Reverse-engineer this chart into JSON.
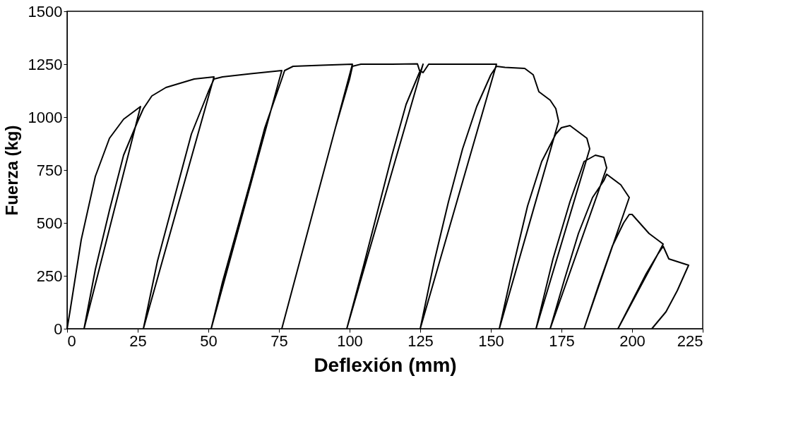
{
  "chart_data": {
    "type": "line",
    "xlabel": "Deflexión (mm)",
    "ylabel": "Fuerza (kg)",
    "xlim": [
      0,
      225
    ],
    "ylim": [
      0,
      1500
    ],
    "xticks": [
      0,
      25,
      50,
      75,
      100,
      125,
      150,
      175,
      200,
      225
    ],
    "yticks": [
      0,
      250,
      500,
      750,
      1000,
      1250,
      1500
    ],
    "grid": false,
    "marker": "none",
    "line_style": "solid",
    "series": [
      {
        "color": "#000000",
        "x": [
          0,
          1,
          5,
          10,
          15,
          20,
          24,
          26,
          6,
          10,
          15,
          20,
          25,
          27,
          30,
          35,
          40,
          45,
          52,
          27,
          32,
          38,
          44,
          50,
          52,
          55,
          65,
          76,
          51,
          55,
          60,
          65,
          70,
          76,
          77,
          80,
          90,
          101,
          76,
          80,
          85,
          90,
          95,
          100,
          101,
          104,
          115,
          124,
          125,
          126,
          99,
          105,
          110,
          115,
          120,
          125,
          126,
          128,
          140,
          152,
          125,
          130,
          135,
          140,
          145,
          150,
          152,
          155,
          162,
          165,
          167,
          171,
          173,
          174,
          153,
          158,
          163,
          168,
          173,
          175,
          178,
          184,
          185,
          166,
          172,
          178,
          183,
          187,
          190,
          191,
          171,
          176,
          181,
          186,
          190,
          191,
          196,
          199,
          183,
          188,
          193,
          197,
          199,
          200,
          206,
          211,
          195,
          200,
          205,
          209,
          211,
          213,
          220,
          216,
          212,
          207
        ],
        "values": [
          0,
          80,
          420,
          720,
          900,
          990,
          1030,
          1050,
          0,
          280,
          560,
          820,
          980,
          1040,
          1100,
          1140,
          1160,
          1180,
          1190,
          0,
          320,
          620,
          920,
          1120,
          1180,
          1190,
          1205,
          1220,
          0,
          220,
          460,
          700,
          950,
          1180,
          1220,
          1240,
          1245,
          1250,
          0,
          200,
          450,
          700,
          950,
          1180,
          1240,
          1250,
          1250,
          1252,
          1210,
          1250,
          0,
          300,
          560,
          820,
          1060,
          1220,
          1210,
          1250,
          1250,
          1250,
          0,
          320,
          600,
          850,
          1050,
          1200,
          1240,
          1235,
          1230,
          1200,
          1120,
          1080,
          1040,
          980,
          0,
          300,
          580,
          790,
          920,
          950,
          960,
          900,
          850,
          0,
          330,
          600,
          790,
          820,
          810,
          760,
          0,
          230,
          450,
          620,
          700,
          730,
          680,
          620,
          0,
          200,
          390,
          500,
          540,
          540,
          450,
          400,
          0,
          130,
          260,
          350,
          390,
          330,
          300,
          180,
          80,
          0
        ]
      }
    ]
  }
}
